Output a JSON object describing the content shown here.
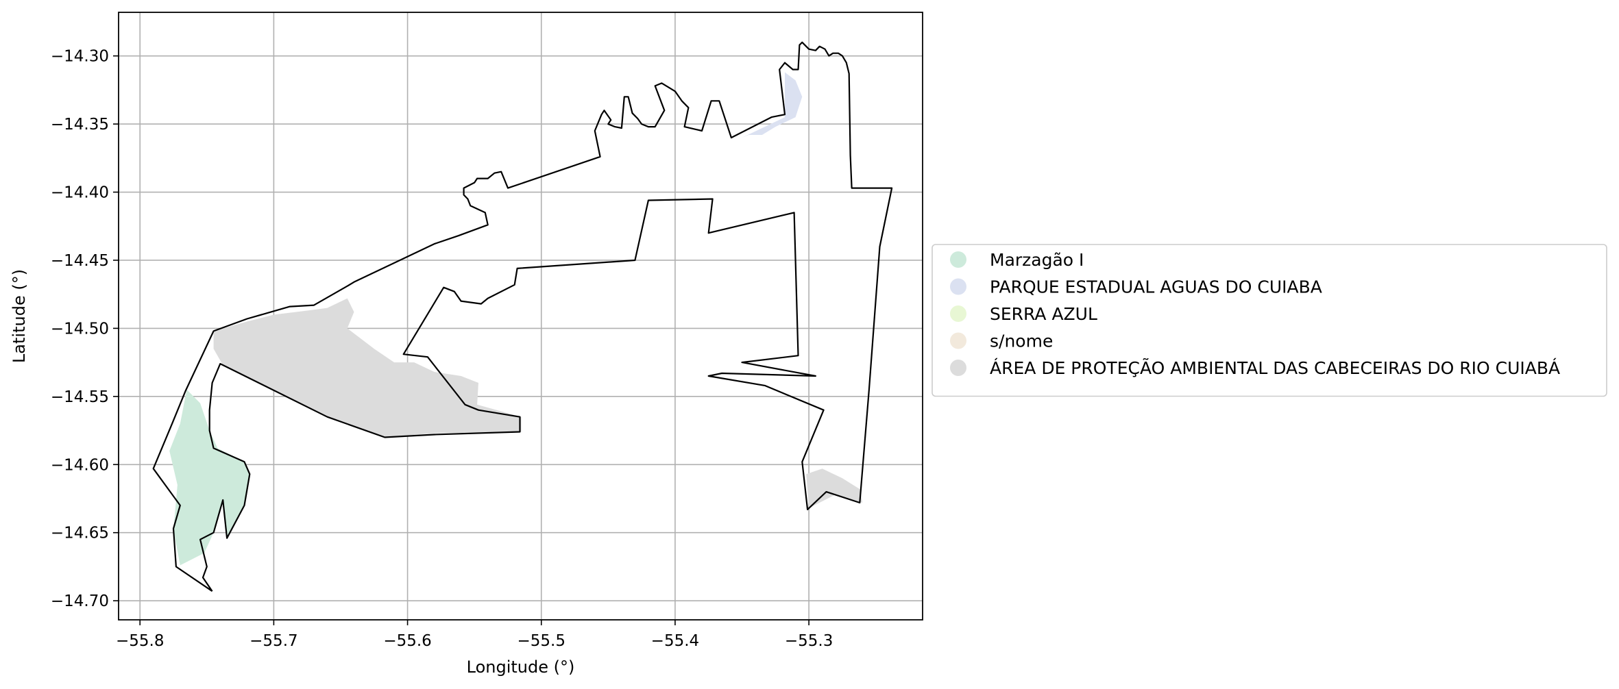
{
  "chart_data": {
    "type": "map",
    "xlabel": "Longitude (°)",
    "ylabel": "Latitude (°)",
    "xlim": [
      -55.816,
      -55.215
    ],
    "ylim": [
      -14.714,
      -14.268
    ],
    "grid": true,
    "x_ticks": [
      {
        "value": -55.8,
        "label": "−55.8"
      },
      {
        "value": -55.7,
        "label": "−55.7"
      },
      {
        "value": -55.6,
        "label": "−55.6"
      },
      {
        "value": -55.5,
        "label": "−55.5"
      },
      {
        "value": -55.4,
        "label": "−55.4"
      },
      {
        "value": -55.3,
        "label": "−55.3"
      }
    ],
    "y_ticks": [
      {
        "value": -14.3,
        "label": "−14.30"
      },
      {
        "value": -14.35,
        "label": "−14.35"
      },
      {
        "value": -14.4,
        "label": "−14.40"
      },
      {
        "value": -14.45,
        "label": "−14.45"
      },
      {
        "value": -14.5,
        "label": "−14.50"
      },
      {
        "value": -14.55,
        "label": "−14.55"
      },
      {
        "value": -14.6,
        "label": "−14.60"
      },
      {
        "value": -14.65,
        "label": "−14.65"
      },
      {
        "value": -14.7,
        "label": "−14.70"
      }
    ],
    "legend_position": "right",
    "legend": [
      {
        "name": "Marzagão I",
        "color": "#cdeadb"
      },
      {
        "name": "PARQUE ESTADUAL AGUAS DO CUIABA",
        "color": "#dbe1f1"
      },
      {
        "name": "SERRA AZUL",
        "color": "#e8f7d4"
      },
      {
        "name": "s/nome",
        "color": "#f2e9dc"
      },
      {
        "name": "ÁREA DE PROTEÇÃO AMBIENTAL DAS CABECEIRAS DO RIO CUIABÁ",
        "color": "#dcdcdc"
      }
    ],
    "areas": [
      {
        "name": "ÁREA DE PROTEÇÃO AMBIENTAL DAS CABECEIRAS DO RIO CUIABÁ",
        "color": "#dcdcdc",
        "polygons": [
          [
            [
              -55.745,
              -14.502
            ],
            [
              -55.72,
              -14.495
            ],
            [
              -55.7,
              -14.49
            ],
            [
              -55.675,
              -14.487
            ],
            [
              -55.66,
              -14.485
            ],
            [
              -55.645,
              -14.478
            ],
            [
              -55.64,
              -14.488
            ],
            [
              -55.645,
              -14.5
            ],
            [
              -55.625,
              -14.515
            ],
            [
              -55.61,
              -14.525
            ],
            [
              -55.595,
              -14.525
            ],
            [
              -55.58,
              -14.532
            ],
            [
              -55.56,
              -14.535
            ],
            [
              -55.547,
              -14.54
            ],
            [
              -55.548,
              -14.556
            ],
            [
              -55.515,
              -14.565
            ],
            [
              -55.515,
              -14.576
            ],
            [
              -55.58,
              -14.577
            ],
            [
              -55.618,
              -14.58
            ],
            [
              -55.66,
              -14.565
            ],
            [
              -55.7,
              -14.545
            ],
            [
              -55.738,
              -14.527
            ],
            [
              -55.745,
              -14.515
            ]
          ],
          [
            [
              -55.302,
              -14.607
            ],
            [
              -55.29,
              -14.603
            ],
            [
              -55.275,
              -14.61
            ],
            [
              -55.262,
              -14.618
            ],
            [
              -55.26,
              -14.628
            ],
            [
              -55.28,
              -14.622
            ],
            [
              -55.3,
              -14.632
            ]
          ]
        ]
      },
      {
        "name": "Marzagão I",
        "color": "#cdeadb",
        "polygons": [
          [
            [
              -55.765,
              -14.545
            ],
            [
              -55.755,
              -14.555
            ],
            [
              -55.748,
              -14.575
            ],
            [
              -55.742,
              -14.588
            ],
            [
              -55.722,
              -14.598
            ],
            [
              -55.718,
              -14.607
            ],
            [
              -55.722,
              -14.63
            ],
            [
              -55.735,
              -14.654
            ],
            [
              -55.738,
              -14.626
            ],
            [
              -55.745,
              -14.65
            ],
            [
              -55.752,
              -14.665
            ],
            [
              -55.77,
              -14.674
            ],
            [
              -55.775,
              -14.648
            ],
            [
              -55.772,
              -14.615
            ],
            [
              -55.778,
              -14.59
            ],
            [
              -55.77,
              -14.57
            ]
          ]
        ]
      },
      {
        "name": "PARQUE ESTADUAL AGUAS DO CUIABA",
        "color": "#dbe1f1",
        "polygons": [
          [
            [
              -55.318,
              -14.312
            ],
            [
              -55.31,
              -14.318
            ],
            [
              -55.305,
              -14.33
            ],
            [
              -55.31,
              -14.345
            ],
            [
              -55.325,
              -14.352
            ],
            [
              -55.335,
              -14.358
            ],
            [
              -55.345,
              -14.358
            ],
            [
              -55.35,
              -14.36
            ],
            [
              -55.318,
              -14.345
            ],
            [
              -55.318,
              -14.33
            ]
          ]
        ]
      }
    ],
    "boundary": [
      [
        -55.746,
        -14.693
      ],
      [
        -55.773,
        -14.675
      ],
      [
        -55.775,
        -14.647
      ],
      [
        -55.77,
        -14.63
      ],
      [
        -55.79,
        -14.603
      ],
      [
        -55.776,
        -14.57
      ],
      [
        -55.766,
        -14.546
      ],
      [
        -55.745,
        -14.502
      ],
      [
        -55.72,
        -14.493
      ],
      [
        -55.688,
        -14.484
      ],
      [
        -55.67,
        -14.483
      ],
      [
        -55.645,
        -14.469
      ],
      [
        -55.64,
        -14.466
      ],
      [
        -55.58,
        -14.438
      ],
      [
        -55.562,
        -14.432
      ],
      [
        -55.54,
        -14.424
      ],
      [
        -55.542,
        -14.415
      ],
      [
        -55.553,
        -14.41
      ],
      [
        -55.555,
        -14.405
      ],
      [
        -55.558,
        -14.402
      ],
      [
        -55.558,
        -14.397
      ],
      [
        -55.55,
        -14.393
      ],
      [
        -55.548,
        -14.39
      ],
      [
        -55.54,
        -14.39
      ],
      [
        -55.535,
        -14.386
      ],
      [
        -55.53,
        -14.385
      ],
      [
        -55.525,
        -14.397
      ],
      [
        -55.456,
        -14.374
      ],
      [
        -55.46,
        -14.355
      ],
      [
        -55.455,
        -14.343
      ],
      [
        -55.453,
        -14.34
      ],
      [
        -55.448,
        -14.347
      ],
      [
        -55.45,
        -14.35
      ],
      [
        -55.445,
        -14.352
      ],
      [
        -55.44,
        -14.353
      ],
      [
        -55.438,
        -14.33
      ],
      [
        -55.435,
        -14.33
      ],
      [
        -55.432,
        -14.342
      ],
      [
        -55.428,
        -14.346
      ],
      [
        -55.425,
        -14.35
      ],
      [
        -55.42,
        -14.352
      ],
      [
        -55.415,
        -14.352
      ],
      [
        -55.408,
        -14.34
      ],
      [
        -55.415,
        -14.322
      ],
      [
        -55.41,
        -14.32
      ],
      [
        -55.4,
        -14.326
      ],
      [
        -55.395,
        -14.333
      ],
      [
        -55.39,
        -14.338
      ],
      [
        -55.393,
        -14.352
      ],
      [
        -55.38,
        -14.355
      ],
      [
        -55.373,
        -14.333
      ],
      [
        -55.367,
        -14.333
      ],
      [
        -55.358,
        -14.36
      ],
      [
        -55.328,
        -14.345
      ],
      [
        -55.318,
        -14.343
      ],
      [
        -55.322,
        -14.31
      ],
      [
        -55.318,
        -14.305
      ],
      [
        -55.312,
        -14.31
      ],
      [
        -55.308,
        -14.31
      ],
      [
        -55.307,
        -14.292
      ],
      [
        -55.305,
        -14.29
      ],
      [
        -55.3,
        -14.295
      ],
      [
        -55.295,
        -14.296
      ],
      [
        -55.292,
        -14.293
      ],
      [
        -55.288,
        -14.295
      ],
      [
        -55.285,
        -14.3
      ],
      [
        -55.282,
        -14.298
      ],
      [
        -55.278,
        -14.298
      ],
      [
        -55.275,
        -14.3
      ],
      [
        -55.272,
        -14.305
      ],
      [
        -55.27,
        -14.313
      ],
      [
        -55.269,
        -14.373
      ],
      [
        -55.268,
        -14.397
      ],
      [
        -55.238,
        -14.397
      ],
      [
        -55.247,
        -14.44
      ],
      [
        -55.255,
        -14.545
      ],
      [
        -55.262,
        -14.628
      ],
      [
        -55.287,
        -14.62
      ],
      [
        -55.301,
        -14.633
      ],
      [
        -55.305,
        -14.598
      ],
      [
        -55.289,
        -14.56
      ],
      [
        -55.333,
        -14.542
      ],
      [
        -55.375,
        -14.535
      ],
      [
        -55.365,
        -14.533
      ],
      [
        -55.295,
        -14.535
      ],
      [
        -55.35,
        -14.525
      ],
      [
        -55.308,
        -14.52
      ],
      [
        -55.311,
        -14.415
      ],
      [
        -55.375,
        -14.43
      ],
      [
        -55.372,
        -14.405
      ],
      [
        -55.42,
        -14.406
      ],
      [
        -55.43,
        -14.45
      ],
      [
        -55.518,
        -14.456
      ],
      [
        -55.52,
        -14.468
      ],
      [
        -55.54,
        -14.478
      ],
      [
        -55.545,
        -14.482
      ],
      [
        -55.56,
        -14.48
      ],
      [
        -55.565,
        -14.473
      ],
      [
        -55.573,
        -14.47
      ],
      [
        -55.603,
        -14.519
      ],
      [
        -55.585,
        -14.521
      ],
      [
        -55.557,
        -14.556
      ],
      [
        -55.547,
        -14.56
      ],
      [
        -55.516,
        -14.565
      ],
      [
        -55.516,
        -14.576
      ],
      [
        -55.58,
        -14.578
      ],
      [
        -55.617,
        -14.58
      ],
      [
        -55.66,
        -14.565
      ],
      [
        -55.74,
        -14.526
      ],
      [
        -55.746,
        -14.54
      ],
      [
        -55.748,
        -14.56
      ],
      [
        -55.748,
        -14.575
      ],
      [
        -55.745,
        -14.588
      ],
      [
        -55.722,
        -14.598
      ],
      [
        -55.718,
        -14.607
      ],
      [
        -55.722,
        -14.63
      ],
      [
        -55.735,
        -14.654
      ],
      [
        -55.738,
        -14.626
      ],
      [
        -55.745,
        -14.65
      ],
      [
        -55.755,
        -14.655
      ],
      [
        -55.75,
        -14.675
      ],
      [
        -55.753,
        -14.683
      ],
      [
        -55.746,
        -14.693
      ]
    ]
  }
}
